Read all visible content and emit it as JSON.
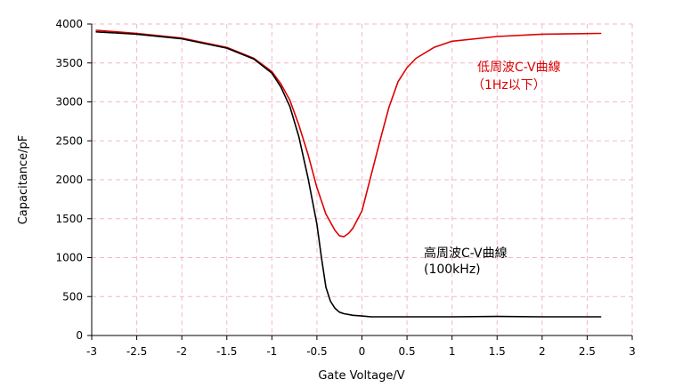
{
  "chart_data": {
    "type": "line",
    "title": "",
    "xlabel": "Gate Voltage/V",
    "ylabel": "Capacitance/pF",
    "xlim": [
      -3,
      3
    ],
    "ylim": [
      0,
      4000
    ],
    "grid": true,
    "x_ticks": [
      -3,
      -2.5,
      -2,
      -1.5,
      -1,
      -0.5,
      0,
      0.5,
      1,
      1.5,
      2,
      2.5,
      3
    ],
    "x_tick_labels": [
      "-3",
      "-2.5",
      "-2",
      "-1.5",
      "-1",
      "-0.5",
      "0",
      "0.5",
      "1",
      "1.5",
      "2",
      "2.5",
      "3"
    ],
    "y_ticks": [
      0,
      500,
      1000,
      1500,
      2000,
      2500,
      3000,
      3500,
      4000
    ],
    "y_tick_labels": [
      "0",
      "500",
      "1000",
      "1500",
      "2000",
      "2500",
      "3000",
      "3500",
      "4000"
    ],
    "series": [
      {
        "name": "低周波C-V曲線",
        "color": "#dd0000",
        "x": [
          -2.95,
          -2.5,
          -2.0,
          -1.5,
          -1.2,
          -1.0,
          -0.9,
          -0.8,
          -0.7,
          -0.6,
          -0.5,
          -0.4,
          -0.3,
          -0.25,
          -0.2,
          -0.15,
          -0.1,
          0.0,
          0.1,
          0.2,
          0.3,
          0.4,
          0.5,
          0.6,
          0.8,
          1.0,
          1.5,
          2.0,
          2.65
        ],
        "y": [
          3920,
          3880,
          3820,
          3700,
          3560,
          3390,
          3230,
          3020,
          2700,
          2330,
          1900,
          1560,
          1350,
          1280,
          1270,
          1310,
          1380,
          1600,
          2050,
          2500,
          2930,
          3260,
          3440,
          3560,
          3700,
          3780,
          3840,
          3870,
          3880
        ]
      },
      {
        "name": "高周波C-V曲線",
        "color": "#000000",
        "x": [
          -2.95,
          -2.5,
          -2.0,
          -1.5,
          -1.2,
          -1.0,
          -0.9,
          -0.8,
          -0.7,
          -0.6,
          -0.5,
          -0.45,
          -0.4,
          -0.35,
          -0.3,
          -0.25,
          -0.2,
          -0.1,
          0.0,
          0.1,
          0.5,
          1.0,
          1.5,
          2.0,
          2.65
        ],
        "y": [
          3900,
          3870,
          3810,
          3690,
          3550,
          3370,
          3190,
          2940,
          2550,
          2030,
          1430,
          1000,
          620,
          440,
          350,
          300,
          280,
          260,
          250,
          240,
          240,
          240,
          245,
          240,
          240
        ]
      }
    ],
    "annotations": [
      {
        "line1": "低周波C-V曲線",
        "line2": "（1Hz以下）",
        "color": "#dd0000"
      },
      {
        "line1": "高周波C-V曲線",
        "line2": "(100kHz)",
        "color": "#000000"
      }
    ]
  }
}
